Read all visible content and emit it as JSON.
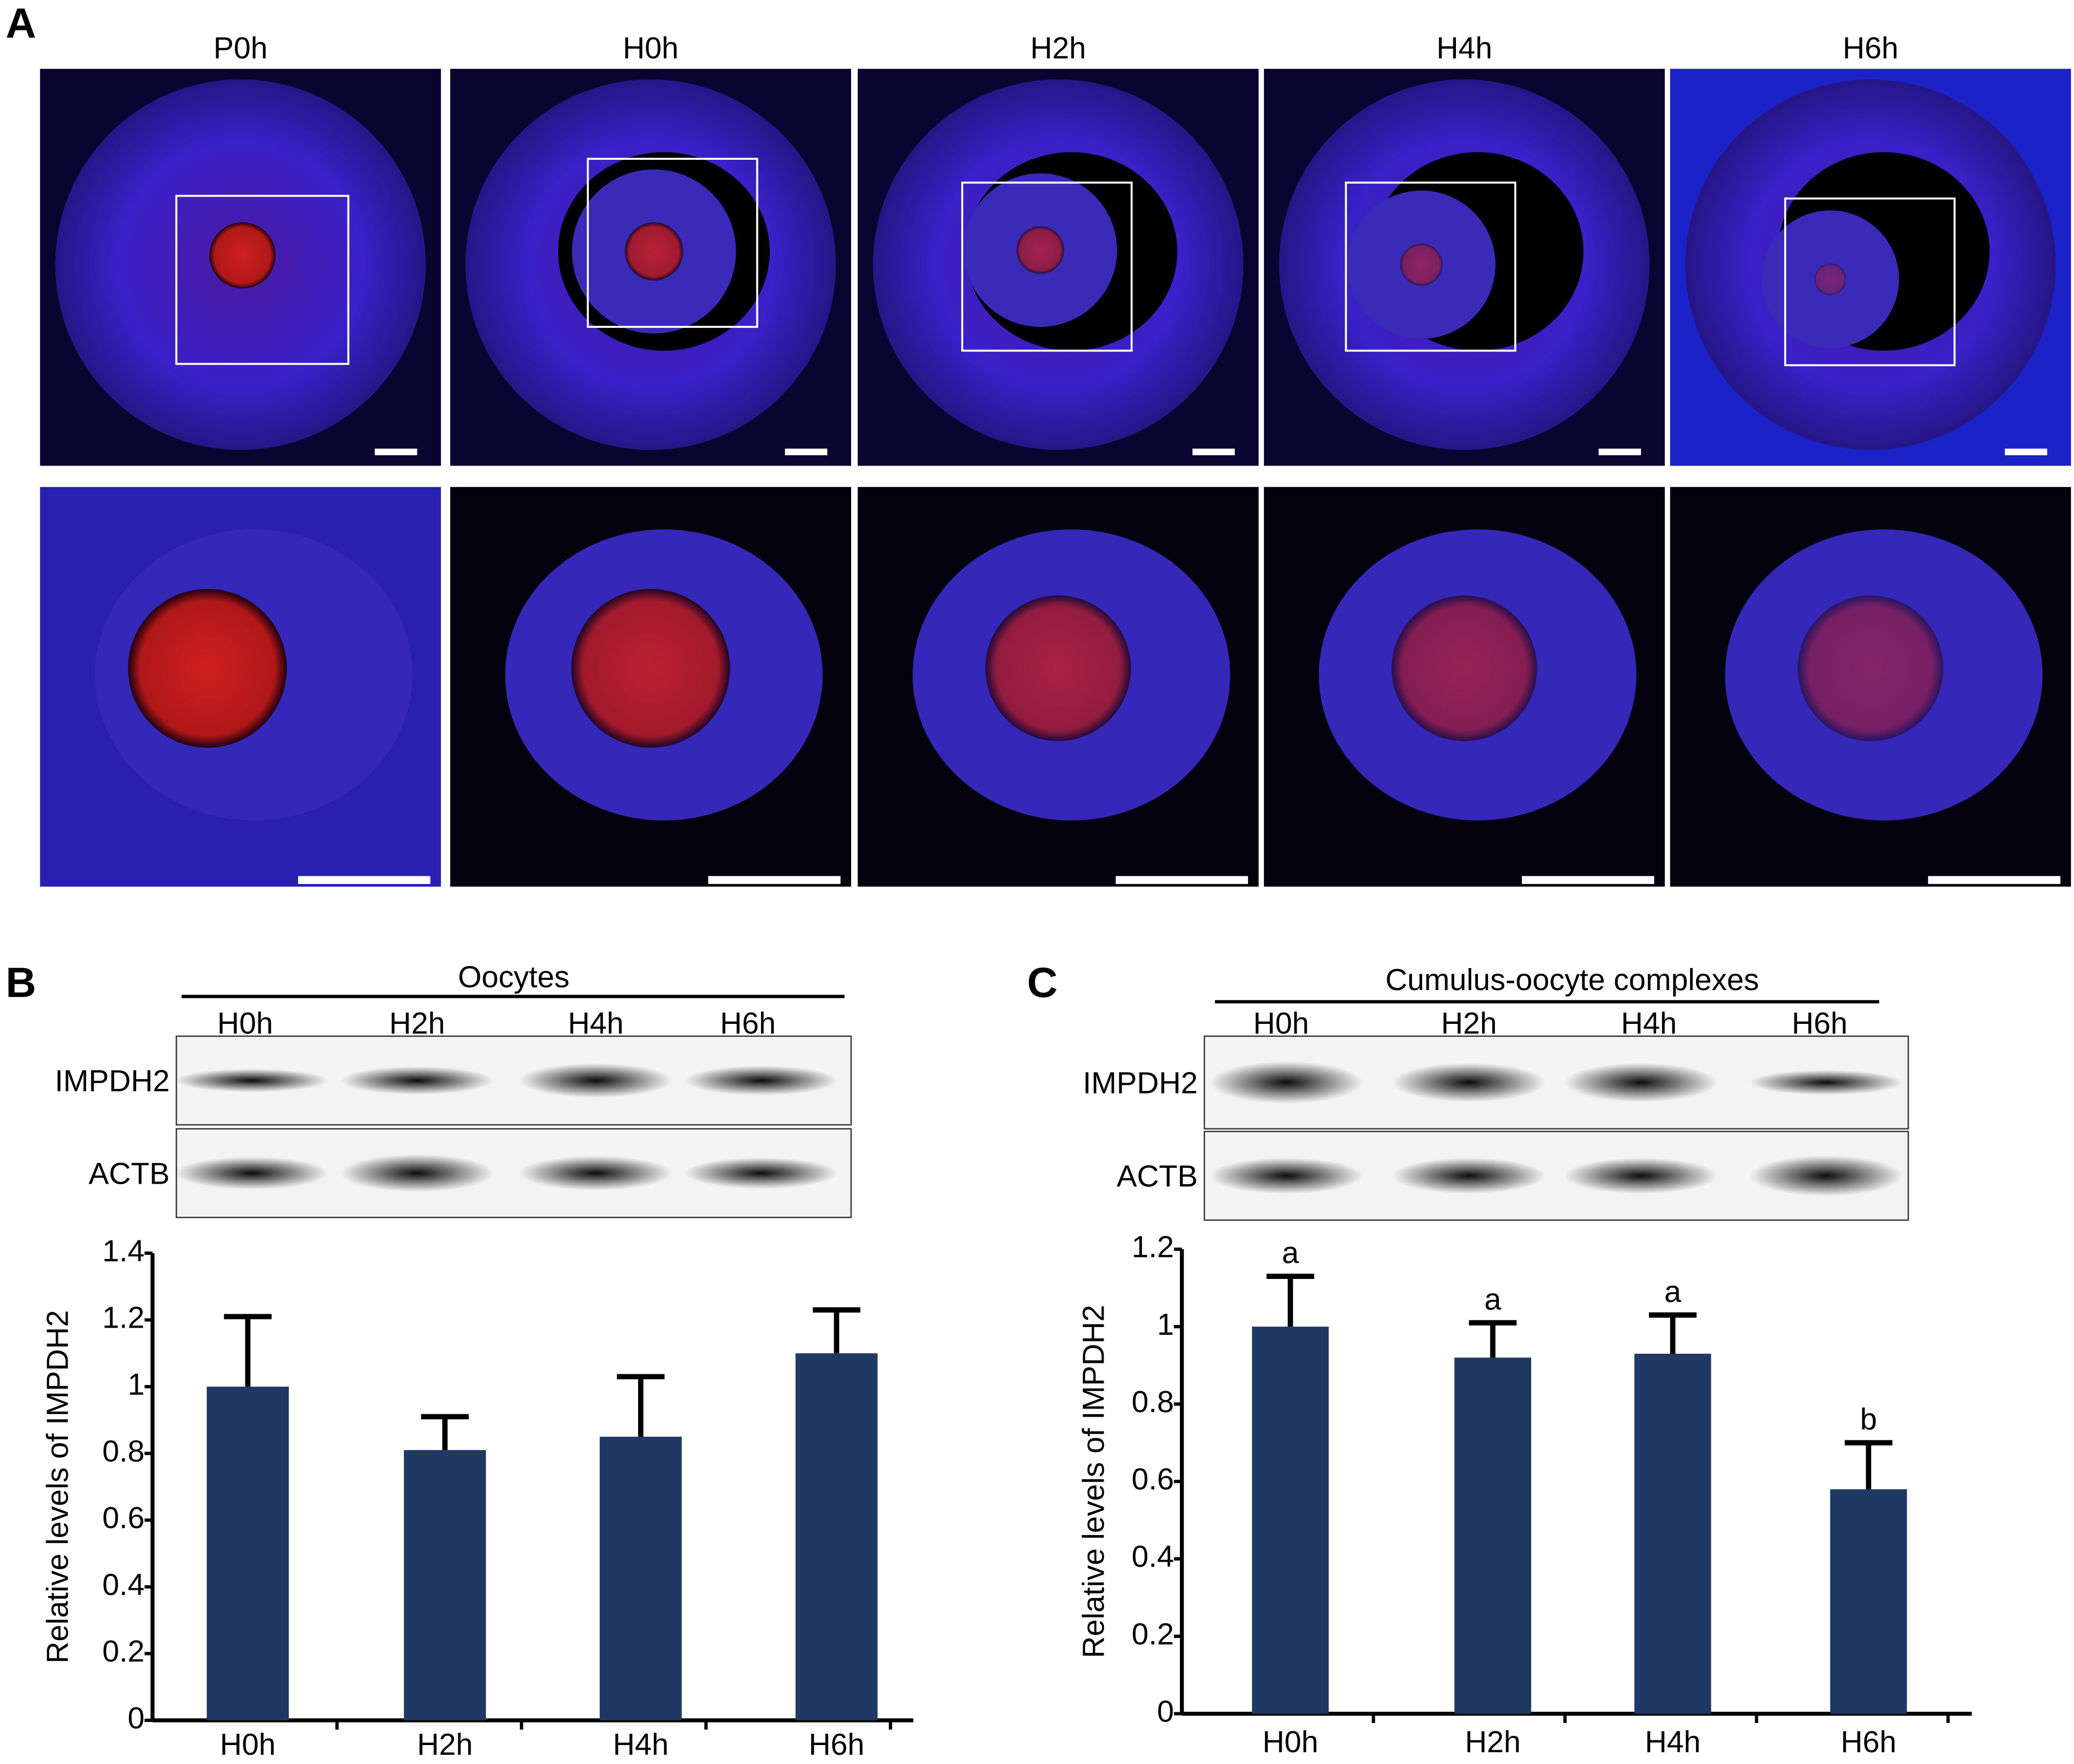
{
  "panel_labels": [
    "A",
    "B",
    "C"
  ],
  "micrographs": {
    "labels": [
      "P0h",
      "H0h",
      "H2h",
      "H4h",
      "H6h"
    ]
  },
  "blots": [
    {
      "title": "Oocytes",
      "lanes": [
        "H0h",
        "H2h",
        "H4h",
        "H6h"
      ],
      "rows": [
        "IMPDH2",
        "ACTB"
      ]
    },
    {
      "title": "Cumulus-oocyte complexes",
      "lanes": [
        "H0h",
        "H2h",
        "H4h",
        "H6h"
      ],
      "rows": [
        "IMPDH2",
        "ACTB"
      ]
    }
  ],
  "chart_data": [
    {
      "type": "bar",
      "ylabel": "Relative levels of IMPDH2",
      "categories": [
        "H0h",
        "H2h",
        "H4h",
        "H6h"
      ],
      "values": [
        1.0,
        0.81,
        0.85,
        1.1
      ],
      "errors": [
        0.21,
        0.1,
        0.18,
        0.13
      ],
      "color": "#1f3864",
      "ylim": [
        0,
        1.4
      ],
      "yticks": [
        0,
        0.2,
        0.4,
        0.6,
        0.8,
        1,
        1.2,
        1.4
      ]
    },
    {
      "type": "bar",
      "ylabel": "Relative levels of IMPDH2",
      "categories": [
        "H0h",
        "H2h",
        "H4h",
        "H6h"
      ],
      "values": [
        1.0,
        0.92,
        0.93,
        0.58
      ],
      "errors": [
        0.13,
        0.09,
        0.1,
        0.12
      ],
      "annotations": [
        "a",
        "a",
        "a",
        "b"
      ],
      "color": "#1f3864",
      "ylim": [
        0,
        1.2
      ],
      "yticks": [
        0,
        0.2,
        0.4,
        0.6,
        0.8,
        1,
        1.2
      ]
    }
  ]
}
